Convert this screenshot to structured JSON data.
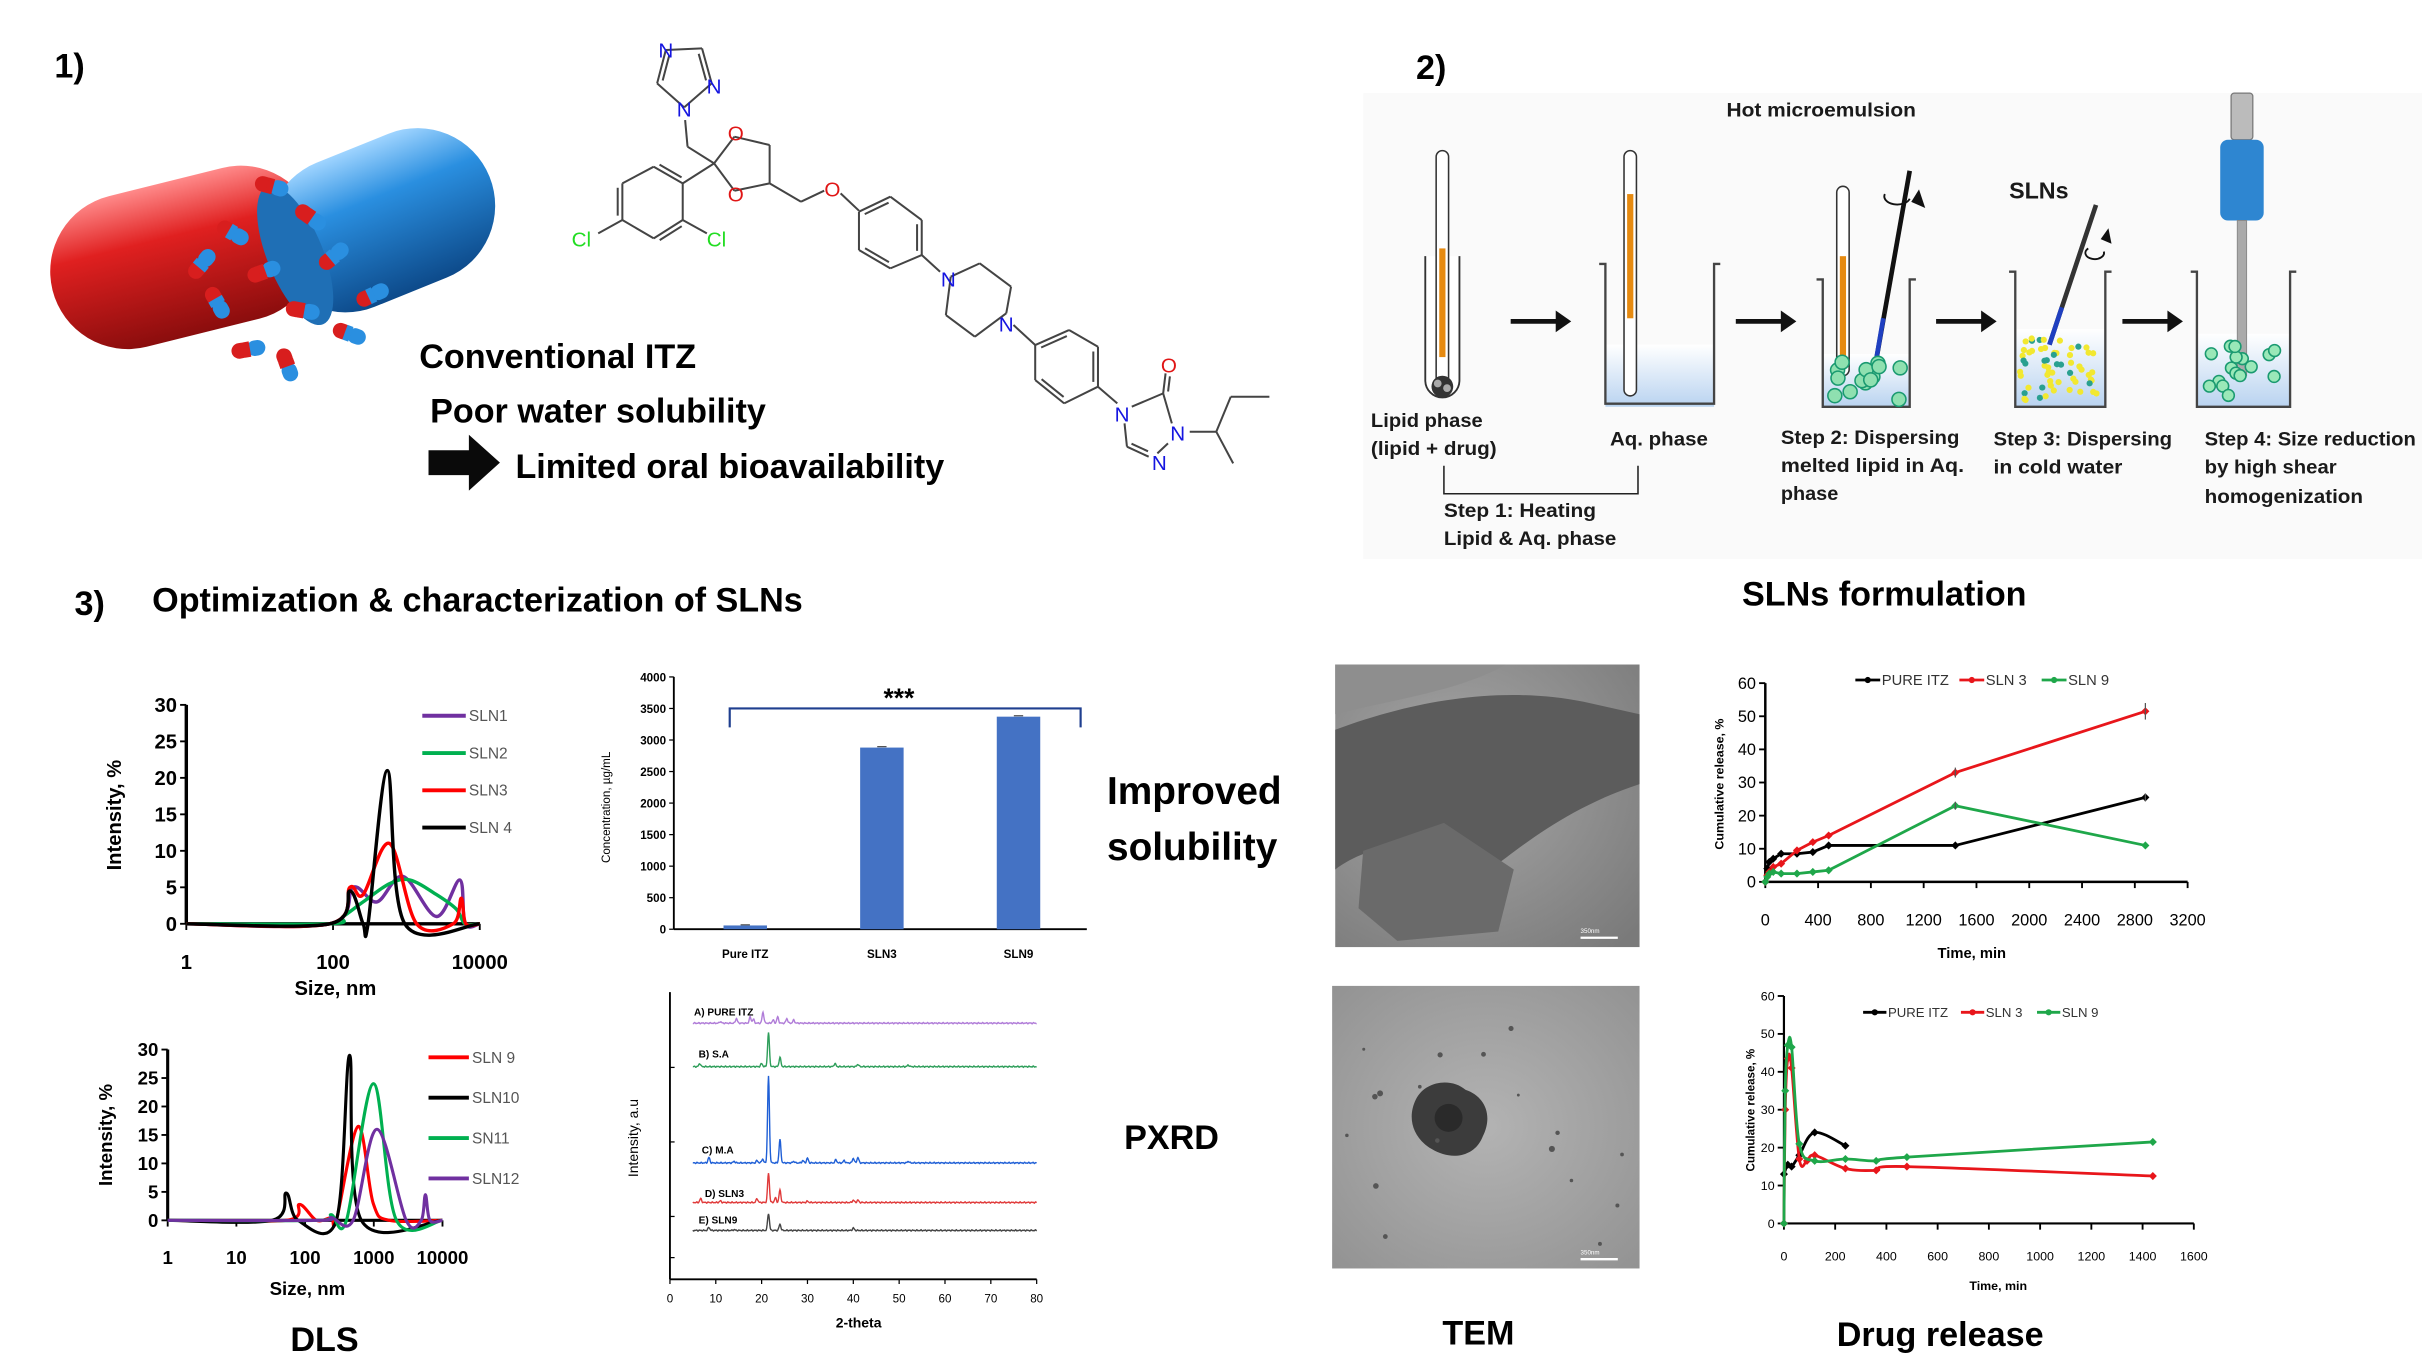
{
  "panel1": {
    "label": "1)",
    "lines": [
      "Conventional ITZ",
      "Poor water solubility",
      "Limited oral bioavailability"
    ],
    "molecule_atoms": {
      "N": "N",
      "O": "O",
      "Cl": "Cl"
    }
  },
  "panel2": {
    "label": "2)",
    "hot_microemulsion": "Hot microemulsion",
    "slns": "SLNs",
    "lipid_phase": [
      "Lipid phase",
      "(lipid + drug)"
    ],
    "aq_phase": "Aq. phase",
    "step1": [
      "Step 1: Heating",
      "Lipid & Aq. phase"
    ],
    "step2": [
      "Step 2: Dispersing",
      "melted lipid in Aq.",
      "phase"
    ],
    "step3": [
      "Step 3: Dispersing",
      "in cold water"
    ],
    "step4": [
      "Step 4: Size reduction",
      "by high shear",
      "homogenization"
    ],
    "caption": "SLNs formulation"
  },
  "panel3": {
    "label": "3)",
    "title": "Optimization & characterization of SLNs",
    "captions": {
      "dls": "DLS",
      "improved": [
        "Improved",
        "solubility"
      ],
      "pxrd": "PXRD",
      "tem": "TEM",
      "drug_release": "Drug release"
    },
    "tem_scale_bar": "350nm"
  },
  "colors": {
    "capsule_red": "#d81e1e",
    "capsule_blue": "#2a8fe0",
    "bar_blue": "#4472c4",
    "bracket": "#1f3f8f"
  },
  "chart_data": [
    {
      "id": "dls-1",
      "type": "line",
      "xlabel": "Size, nm",
      "ylabel": "Intensity, %",
      "x_scale": "log",
      "xlim": [
        1,
        10000
      ],
      "ylim": [
        0,
        30
      ],
      "x_ticks": [
        1,
        100,
        10000
      ],
      "y_ticks": [
        0,
        5,
        10,
        15,
        20,
        25,
        30
      ],
      "legend": "right",
      "series": [
        {
          "name": "SLN1",
          "color": "#7030a0",
          "points": [
            [
              1,
              0
            ],
            [
              90,
              0
            ],
            [
              187,
              5
            ],
            [
              395,
              3
            ],
            [
              900,
              6.5
            ],
            [
              2570,
              1
            ],
            [
              5350,
              6
            ],
            [
              6300,
              0
            ],
            [
              10000,
              0
            ]
          ]
        },
        {
          "name": "SLN2",
          "color": "#00b050",
          "points": [
            [
              1,
              0
            ],
            [
              90,
              0
            ],
            [
              137,
              1
            ],
            [
              257,
              3
            ],
            [
              590,
              5.5
            ],
            [
              1120,
              6
            ],
            [
              2570,
              4
            ],
            [
              4800,
              2
            ],
            [
              6300,
              0
            ],
            [
              10000,
              0
            ]
          ]
        },
        {
          "name": "SLN3",
          "color": "#ff0000",
          "points": [
            [
              1,
              0
            ],
            [
              90,
              0
            ],
            [
              170,
              5
            ],
            [
              257,
              4
            ],
            [
              590,
              11
            ],
            [
              1380,
              0
            ],
            [
              4350,
              0
            ],
            [
              5600,
              3.5
            ],
            [
              6450,
              0
            ],
            [
              10000,
              0
            ]
          ]
        },
        {
          "name": "SLN 4",
          "color": "#000000",
          "points": [
            [
              1,
              0
            ],
            [
              90,
              0
            ],
            [
              170,
              4.5
            ],
            [
              257,
              0
            ],
            [
              300,
              0
            ],
            [
              550,
              21
            ],
            [
              950,
              0
            ],
            [
              10000,
              0
            ]
          ]
        }
      ]
    },
    {
      "id": "dls-2",
      "type": "line",
      "xlabel": "Size, nm",
      "ylabel": "Intensity, %",
      "x_scale": "log",
      "xlim": [
        1,
        10000
      ],
      "ylim": [
        0,
        30
      ],
      "x_ticks": [
        1,
        10,
        100,
        1000,
        10000
      ],
      "y_ticks": [
        0,
        5,
        10,
        15,
        20,
        25,
        30
      ],
      "legend": "right",
      "series": [
        {
          "name": "SLN 9",
          "color": "#ff0000",
          "points": [
            [
              1,
              0
            ],
            [
              53,
              0
            ],
            [
              83,
              2.8
            ],
            [
              146,
              0
            ],
            [
              240,
              0.5
            ],
            [
              285,
              0
            ],
            [
              590,
              16.5
            ],
            [
              980,
              3
            ],
            [
              1700,
              0
            ],
            [
              10000,
              0
            ]
          ]
        },
        {
          "name": "SLN10",
          "color": "#000000",
          "points": [
            [
              1,
              0
            ],
            [
              33,
              0
            ],
            [
              53,
              4.8
            ],
            [
              79,
              0
            ],
            [
              285,
              0
            ],
            [
              445,
              29
            ],
            [
              660,
              0
            ],
            [
              10000,
              0
            ]
          ]
        },
        {
          "name": "SN11",
          "color": "#00b050",
          "points": [
            [
              1,
              0
            ],
            [
              150,
              0
            ],
            [
              240,
              1
            ],
            [
              400,
              0
            ],
            [
              990,
              24
            ],
            [
              2140,
              0
            ],
            [
              10000,
              0
            ]
          ]
        },
        {
          "name": "SLN12",
          "color": "#7030a0",
          "points": [
            [
              1,
              0
            ],
            [
              150,
              0
            ],
            [
              240,
              0.5
            ],
            [
              500,
              0
            ],
            [
              1110,
              16
            ],
            [
              2960,
              0
            ],
            [
              4900,
              0
            ],
            [
              5640,
              4.5
            ],
            [
              6550,
              0
            ],
            [
              10000,
              0
            ]
          ]
        }
      ]
    },
    {
      "id": "solubility",
      "type": "bar",
      "xlabel": "",
      "ylabel": "Concentration, µg/mL",
      "categories": [
        "Pure ITZ",
        "SLN3",
        "SLN9"
      ],
      "values": [
        60,
        2880,
        3370
      ],
      "errors": [
        10,
        15,
        15
      ],
      "ylim": [
        0,
        4000
      ],
      "y_ticks": [
        0,
        500,
        1000,
        1500,
        2000,
        2500,
        3000,
        3500,
        4000
      ],
      "annotation": "***",
      "color": "#4472c4"
    },
    {
      "id": "pxrd",
      "type": "line",
      "xlabel": "2-theta",
      "ylabel": "Intensity, a.u",
      "xlim": [
        0,
        80
      ],
      "x_ticks": [
        0,
        10,
        20,
        30,
        40,
        50,
        60,
        70,
        80
      ],
      "trace_range": [
        5,
        80
      ],
      "series": [
        {
          "name": "A) PURE ITZ",
          "color": "#b07cd8",
          "peaks": [
            [
              11,
              1
            ],
            [
              14.5,
              3
            ],
            [
              17.5,
              4
            ],
            [
              18.2,
              2.5
            ],
            [
              20.3,
              7
            ],
            [
              22.5,
              2
            ],
            [
              23.5,
              4
            ],
            [
              25.5,
              3
            ],
            [
              27,
              2
            ]
          ]
        },
        {
          "name": "B) S.A",
          "color": "#2e9e5a",
          "peaks": [
            [
              6.5,
              2
            ],
            [
              20,
              2
            ],
            [
              21.5,
              22
            ],
            [
              24,
              6
            ],
            [
              36,
              2
            ],
            [
              41,
              1.5
            ],
            [
              52,
              1
            ]
          ]
        },
        {
          "name": "C) M.A",
          "color": "#1f5fd6",
          "peaks": [
            [
              8.5,
              3.5
            ],
            [
              14,
              1
            ],
            [
              19,
              1.5
            ],
            [
              20.2,
              2.5
            ],
            [
              21.5,
              56
            ],
            [
              24,
              15
            ],
            [
              27,
              1
            ],
            [
              29,
              1.5
            ],
            [
              30,
              3
            ],
            [
              36.2,
              2
            ],
            [
              38,
              1.5
            ],
            [
              40,
              3
            ],
            [
              41,
              3.5
            ],
            [
              52,
              1
            ]
          ]
        },
        {
          "name": "D) SLN3",
          "color": "#e03a3a",
          "peaks": [
            [
              6.7,
              2.5
            ],
            [
              11,
              1
            ],
            [
              19,
              2.5
            ],
            [
              21.5,
              19
            ],
            [
              23,
              3
            ],
            [
              24,
              8
            ],
            [
              30,
              0.8
            ],
            [
              40,
              1.5
            ],
            [
              41,
              1.5
            ]
          ]
        },
        {
          "name": "E) SLN9",
          "color": "#444444",
          "peaks": [
            [
              8.5,
              2
            ],
            [
              14,
              0.5
            ],
            [
              21.5,
              11
            ],
            [
              24,
              4
            ],
            [
              40,
              1.5
            ]
          ]
        }
      ]
    },
    {
      "id": "release-1",
      "type": "line",
      "xlabel": "Time, min",
      "ylabel": "Cumulative release, %",
      "xlim": [
        0,
        3200
      ],
      "ylim": [
        0,
        60
      ],
      "x_ticks": [
        0,
        400,
        800,
        1200,
        1600,
        2000,
        2400,
        2800,
        3200
      ],
      "y_ticks": [
        0,
        10,
        20,
        30,
        40,
        50,
        60
      ],
      "legend": "top",
      "series": [
        {
          "name": "PURE ITZ",
          "color": "#000000",
          "points": [
            [
              0,
              0
            ],
            [
              15,
              4
            ],
            [
              30,
              6
            ],
            [
              60,
              7
            ],
            [
              120,
              8.5
            ],
            [
              240,
              8.5
            ],
            [
              360,
              9
            ],
            [
              480,
              11
            ],
            [
              1440,
              11
            ],
            [
              2880,
              25.5
            ]
          ]
        },
        {
          "name": "SLN 3",
          "color": "#e8161b",
          "points": [
            [
              0,
              0
            ],
            [
              15,
              2
            ],
            [
              30,
              3
            ],
            [
              60,
              4.5
            ],
            [
              120,
              5.5
            ],
            [
              240,
              9.5
            ],
            [
              360,
              12
            ],
            [
              480,
              14
            ],
            [
              1440,
              33
            ],
            [
              2880,
              51.5
            ]
          ]
        },
        {
          "name": "SLN 9",
          "color": "#1fa74a",
          "points": [
            [
              0,
              0
            ],
            [
              15,
              1.5
            ],
            [
              30,
              2.5
            ],
            [
              60,
              3
            ],
            [
              120,
              2.5
            ],
            [
              240,
              2.5
            ],
            [
              360,
              3
            ],
            [
              480,
              3.5
            ],
            [
              1440,
              23
            ],
            [
              2880,
              11
            ]
          ]
        }
      ]
    },
    {
      "id": "release-2",
      "type": "line",
      "xlabel": "Time, min",
      "ylabel": "Cumulative release,  %",
      "xlim": [
        0,
        1600
      ],
      "ylim": [
        0,
        60
      ],
      "x_ticks": [
        0,
        200,
        400,
        600,
        800,
        1000,
        1200,
        1400,
        1600
      ],
      "y_ticks": [
        0,
        10,
        20,
        30,
        40,
        50,
        60
      ],
      "legend": "top",
      "series": [
        {
          "name": "PURE ITZ",
          "color": "#000000",
          "points": [
            [
              0,
              13
            ],
            [
              15,
              15.5
            ],
            [
              30,
              15
            ],
            [
              60,
              18
            ],
            [
              120,
              24
            ],
            [
              240,
              20.5
            ]
          ]
        },
        {
          "name": "SLN 3",
          "color": "#e8161b",
          "points": [
            [
              0,
              0
            ],
            [
              5,
              30
            ],
            [
              15,
              43.5
            ],
            [
              30,
              41
            ],
            [
              60,
              17
            ],
            [
              90,
              16.5
            ],
            [
              120,
              18
            ],
            [
              240,
              14.5
            ],
            [
              360,
              14
            ],
            [
              480,
              15
            ],
            [
              1440,
              12.5
            ]
          ]
        },
        {
          "name": "SLN 9",
          "color": "#1fa74a",
          "points": [
            [
              0,
              0
            ],
            [
              5,
              35
            ],
            [
              15,
              47
            ],
            [
              30,
              46.5
            ],
            [
              60,
              21
            ],
            [
              120,
              16.5
            ],
            [
              240,
              17
            ],
            [
              360,
              16.5
            ],
            [
              480,
              17.5
            ],
            [
              1440,
              21.5
            ]
          ]
        }
      ]
    }
  ]
}
